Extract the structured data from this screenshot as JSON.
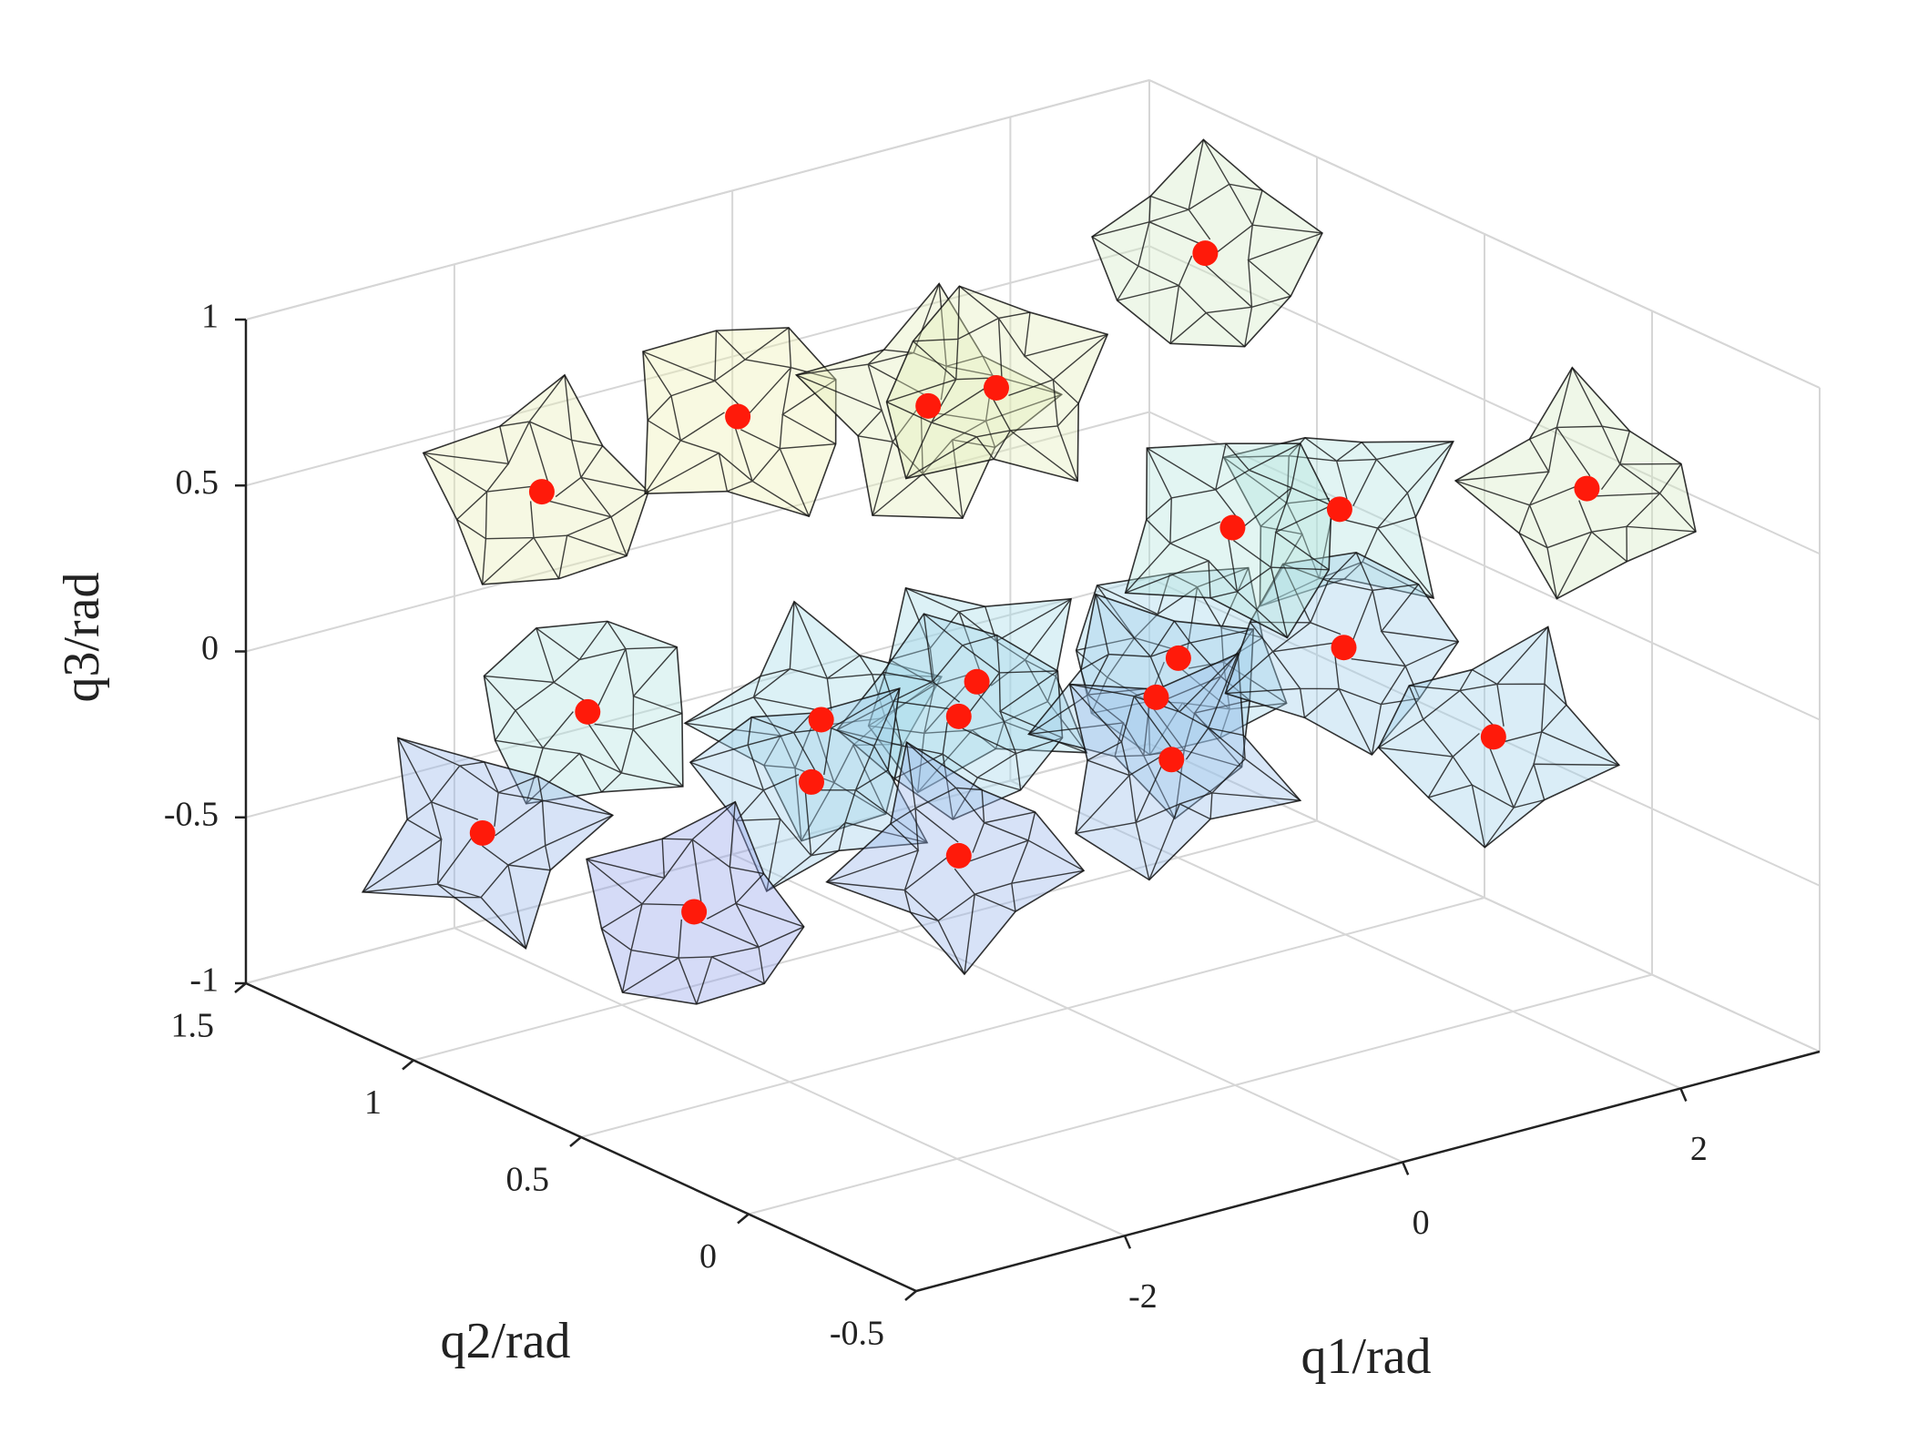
{
  "chart_data": {
    "type": "scatter3d",
    "xlabel": "q1/rad",
    "ylabel": "q2/rad",
    "zlabel": "q3/rad",
    "xlim": [
      -3.5,
      3
    ],
    "ylim": [
      -0.5,
      1.5
    ],
    "zlim": [
      -1,
      1
    ],
    "xticks": [
      -2,
      0,
      2
    ],
    "yticks": [
      -0.5,
      0,
      0.5,
      1,
      1.5
    ],
    "zticks": [
      -1,
      -0.5,
      0,
      0.5,
      1
    ],
    "grid": true,
    "series": [
      {
        "color": "#ff1a0a",
        "x": [
          -3.3,
          -1.89,
          -0.52,
          -0.03,
          2.92,
          2.44,
          2.29,
          -2.97,
          -1.29,
          -0.17,
          -0.3,
          -1.36,
          -0.3,
          1.28,
          1.12,
          1.23,
          2.47,
          2.1,
          -2.28,
          -1.24,
          1.67
        ],
        "y": [
          0.7,
          0.7,
          0.7,
          0.7,
          1.3,
          0.7,
          -0.1,
          0.7,
          0.7,
          0.7,
          0.7,
          0.7,
          0.7,
          0.7,
          0.7,
          0.7,
          0.7,
          0.1,
          1.3,
          1.1,
          0.7
        ],
        "z": [
          0.83,
          0.9,
          0.78,
          0.78,
          0.58,
          0.14,
          0.59,
          0.13,
          -0.08,
          -0.09,
          -0.18,
          -0.26,
          -0.6,
          -0.18,
          -0.28,
          -0.48,
          -0.28,
          -0.23,
          -0.59,
          -0.85,
          0.17
        ]
      }
    ]
  }
}
